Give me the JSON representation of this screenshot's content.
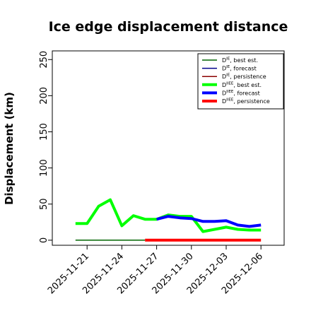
{
  "chart_data": {
    "type": "line",
    "title": "Ice edge displacement distance",
    "xlabel": "",
    "ylabel": "Displacement (km)",
    "ylim": [
      -7,
      262
    ],
    "yticks": [
      0,
      50,
      100,
      150,
      200,
      250
    ],
    "xlim": [
      "2025-11-18",
      "2025-12-08"
    ],
    "xticks": [
      "2025-11-21",
      "2025-11-24",
      "2025-11-27",
      "2025-11-30",
      "2025-12-03",
      "2025-12-06"
    ],
    "highlight_tick": "2025-11-27",
    "highlight_color": "#008000",
    "grid": false,
    "legend_position": "top-right",
    "series": [
      {
        "name": "D<sup>IE</sup>, best est.",
        "label_main": "D",
        "label_sup": "IE",
        "label_rest": ", best est.",
        "color": "#006400",
        "width": 1.5,
        "x": [
          "2025-11-20",
          "2025-11-21",
          "2025-11-22",
          "2025-11-23",
          "2025-11-24",
          "2025-11-25",
          "2025-11-26"
        ],
        "y": [
          0,
          0,
          0,
          0,
          0,
          0,
          0
        ]
      },
      {
        "name": "DIE, forecast",
        "label_main": "D",
        "label_sup": "IE",
        "label_rest": ", forecast",
        "color": "#00008b",
        "width": 1.5,
        "x": [],
        "y": []
      },
      {
        "name": "DIE, persistence",
        "label_main": "D",
        "label_sup": "IE",
        "label_rest": ", persistence",
        "color": "#8b0000",
        "width": 1.5,
        "x": [],
        "y": []
      },
      {
        "name": "DIIEE, best est.",
        "label_main": "D",
        "label_sup": "IIEE",
        "label_rest": ", best est.",
        "color": "#00ff00",
        "width": 4,
        "x": [
          "2025-11-20",
          "2025-11-21",
          "2025-11-22",
          "2025-11-23",
          "2025-11-24",
          "2025-11-25",
          "2025-11-26",
          "2025-11-27",
          "2025-11-28",
          "2025-11-29",
          "2025-11-30",
          "2025-12-01",
          "2025-12-02",
          "2025-12-03",
          "2025-12-04",
          "2025-12-05",
          "2025-12-06"
        ],
        "y": [
          23,
          23,
          47,
          56,
          20,
          34,
          29,
          29,
          35,
          33,
          33,
          12,
          15,
          18,
          15,
          14,
          14
        ]
      },
      {
        "name": "DIIEE, forecast",
        "label_main": "D",
        "label_sup": "IIEE",
        "label_rest": ", forecast",
        "color": "#0000ff",
        "width": 4,
        "x": [
          "2025-11-27",
          "2025-11-28",
          "2025-11-29",
          "2025-11-30",
          "2025-12-01",
          "2025-12-02",
          "2025-12-03",
          "2025-12-04",
          "2025-12-05",
          "2025-12-06"
        ],
        "y": [
          29,
          33,
          31,
          30,
          26,
          26,
          27,
          21,
          19,
          21
        ]
      },
      {
        "name": "DIIEE, persistence",
        "label_main": "D",
        "label_sup": "IIEE",
        "label_rest": ", persistence",
        "color": "#ff0000",
        "width": 4,
        "x": [
          "2025-11-26",
          "2025-11-27",
          "2025-11-28",
          "2025-11-29",
          "2025-11-30",
          "2025-12-01",
          "2025-12-02",
          "2025-12-03",
          "2025-12-04",
          "2025-12-05",
          "2025-12-06"
        ],
        "y": [
          0,
          0,
          0,
          0,
          0,
          0,
          0,
          0,
          0,
          0,
          0
        ]
      }
    ]
  }
}
